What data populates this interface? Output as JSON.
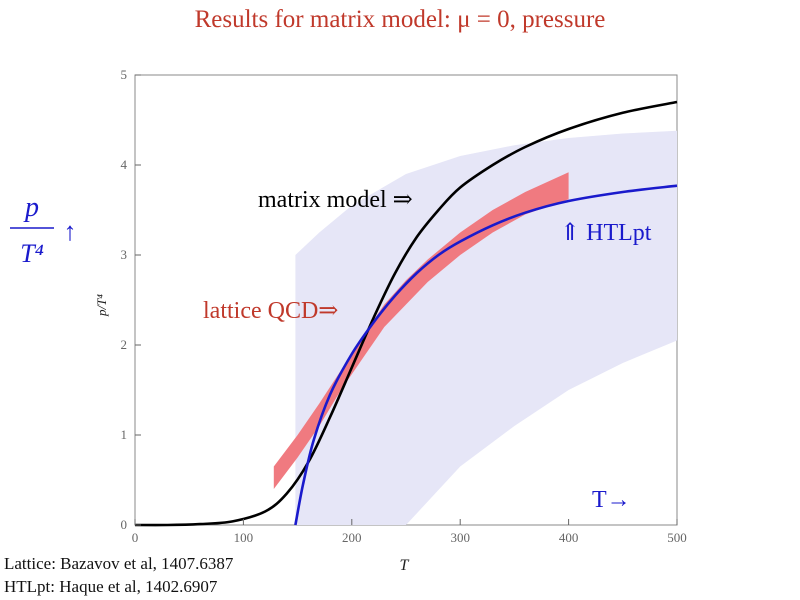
{
  "slide": {
    "title": "Results for matrix model: μ = 0, pressure",
    "references": [
      "Lattice: Bazavov et al, 1407.6387",
      "HTLpt: Haque et al, 1402.6907"
    ],
    "annotations": {
      "matrix_model": "matrix model ⇒",
      "htlpt": "⇑ HTLpt",
      "lattice": "lattice QCD⇒",
      "t_arrow": "T→",
      "ylabel_big_num": "p",
      "ylabel_big_den": "T⁴",
      "ylabel_big_arrow": "↑"
    }
  },
  "chart_data": {
    "type": "line",
    "title": "",
    "xlabel": "T",
    "ylabel": "p/T⁴",
    "xlim": [
      0,
      500
    ],
    "ylim": [
      0,
      5
    ],
    "xticks": [
      0,
      100,
      200,
      300,
      400,
      500
    ],
    "yticks": [
      0,
      1,
      2,
      3,
      4,
      5
    ],
    "grid": false,
    "series": [
      {
        "name": "matrix model",
        "color": "#000000",
        "x": [
          0,
          30,
          60,
          90,
          120,
          140,
          160,
          180,
          200,
          220,
          240,
          260,
          280,
          300,
          330,
          360,
          400,
          450,
          500
        ],
        "y": [
          0,
          0.0,
          0.01,
          0.04,
          0.15,
          0.35,
          0.7,
          1.2,
          1.75,
          2.3,
          2.8,
          3.2,
          3.5,
          3.75,
          4.0,
          4.2,
          4.4,
          4.58,
          4.7
        ]
      },
      {
        "name": "HTLpt",
        "color": "#1a1acc",
        "x": [
          148,
          155,
          165,
          180,
          200,
          220,
          240,
          260,
          280,
          300,
          330,
          360,
          400,
          450,
          500
        ],
        "y": [
          0,
          0.45,
          0.95,
          1.45,
          1.9,
          2.25,
          2.55,
          2.8,
          3.0,
          3.15,
          3.33,
          3.47,
          3.6,
          3.7,
          3.77
        ]
      }
    ],
    "bands": [
      {
        "name": "lattice QCD",
        "color": "#f07a80",
        "x": [
          128,
          150,
          170,
          190,
          210,
          230,
          250,
          270,
          300,
          330,
          360,
          400
        ],
        "lower": [
          0.4,
          0.75,
          1.1,
          1.5,
          1.85,
          2.2,
          2.45,
          2.7,
          3.0,
          3.25,
          3.45,
          3.62
        ],
        "upper": [
          0.65,
          1.0,
          1.35,
          1.72,
          2.1,
          2.45,
          2.72,
          2.95,
          3.25,
          3.5,
          3.7,
          3.92
        ]
      },
      {
        "name": "HTLpt uncertainty",
        "color": "#e6e6f7",
        "x": [
          148,
          170,
          200,
          250,
          300,
          350,
          400,
          450,
          500
        ],
        "lower": [
          0,
          0,
          0,
          0,
          0.65,
          1.1,
          1.5,
          1.8,
          2.05
        ],
        "upper": [
          3.0,
          3.25,
          3.55,
          3.9,
          4.1,
          4.22,
          4.3,
          4.35,
          4.38
        ]
      }
    ]
  }
}
